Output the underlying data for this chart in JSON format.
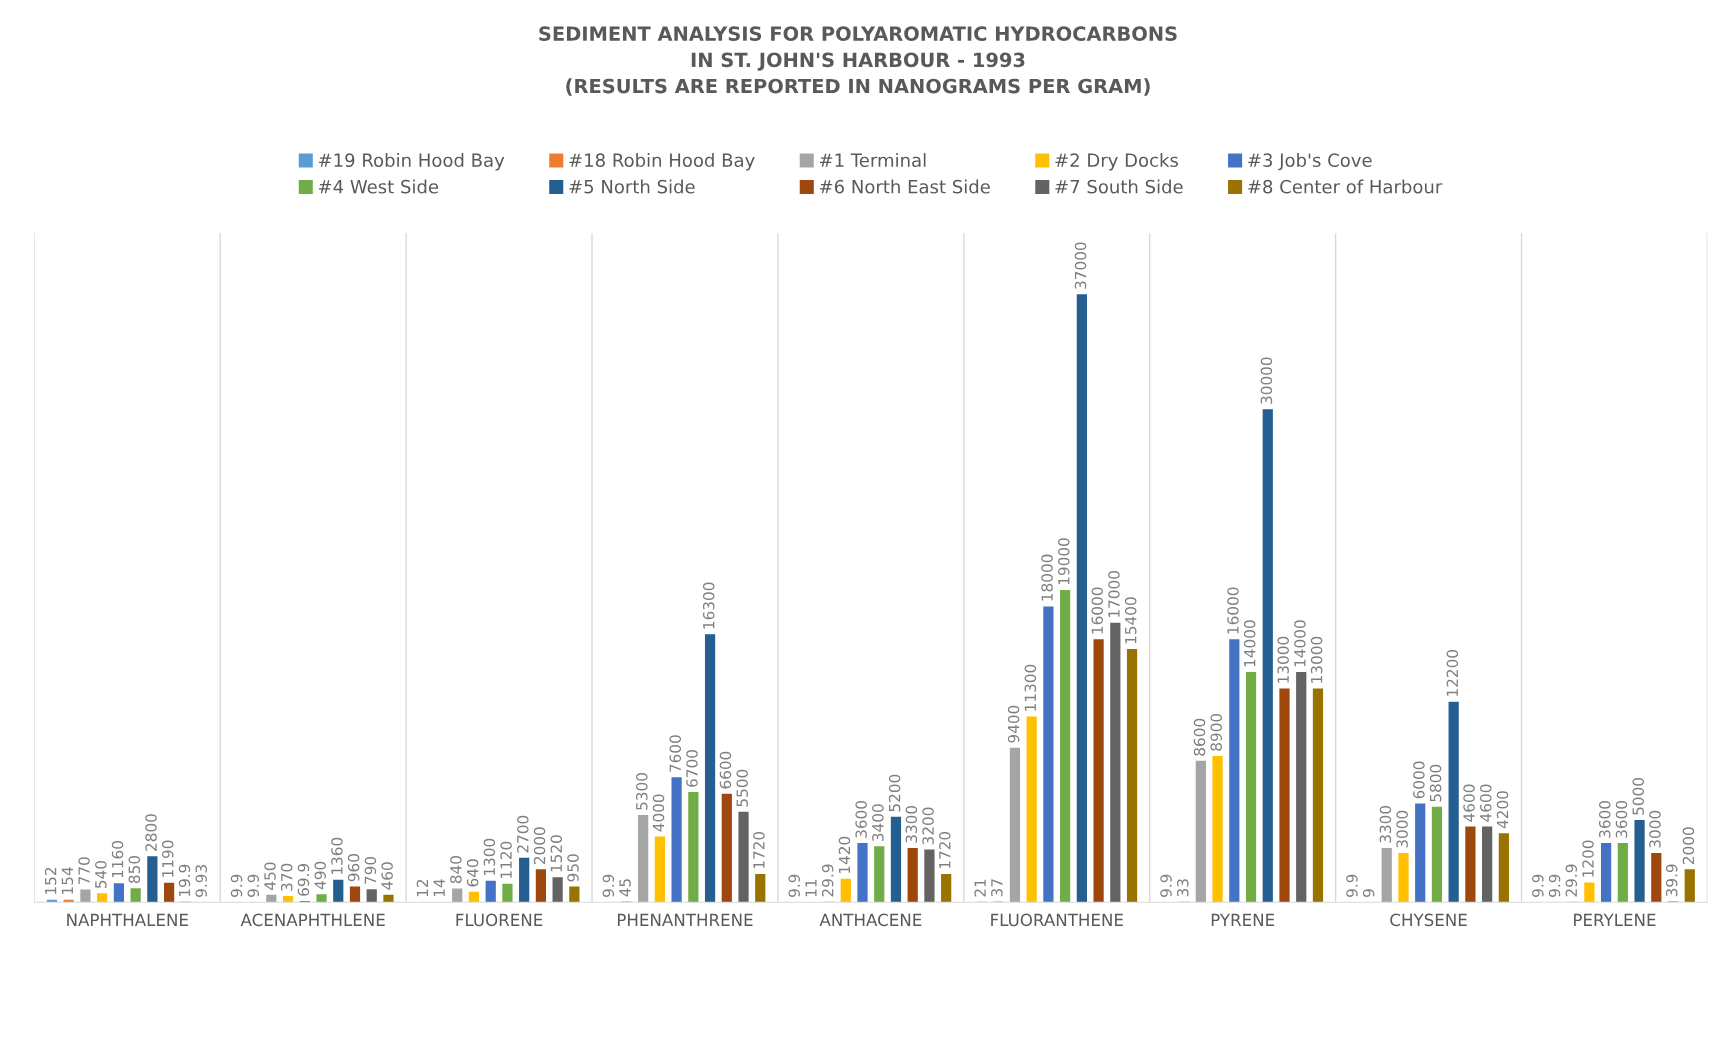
{
  "chart_data": {
    "type": "bar",
    "title": "SEDIMENT ANALYSIS FOR POLYAROMATIC HYDROCARBONS\nIN ST. JOHN'S HARBOUR - 1993\n(RESULTS ARE REPORTED IN NANOGRAMS PER GRAM)",
    "categories": [
      "NAPHTHALENE",
      "ACENAPHTHLENE",
      "FLUORENE",
      "PHENANTHRENE",
      "ANTHACENE",
      "FLUORANTHENE",
      "PYRENE",
      "CHYSENE",
      "PERYLENE"
    ],
    "series": [
      {
        "name": "#19 Robin Hood Bay",
        "color": "#5b9bd5",
        "values": [
          152,
          9.9,
          12,
          9.9,
          9.9,
          21,
          9.9,
          9.9,
          9.9
        ]
      },
      {
        "name": "#18 Robin Hood Bay",
        "color": "#ed7d31",
        "values": [
          154,
          9.9,
          14,
          45,
          11,
          37,
          33,
          9,
          9.9
        ]
      },
      {
        "name": "#1 Terminal",
        "color": "#a5a5a5",
        "values": [
          770,
          450,
          840,
          5300,
          29.9,
          9400,
          8600,
          3300,
          29.9
        ]
      },
      {
        "name": "#2 Dry Docks",
        "color": "#ffc000",
        "values": [
          540,
          370,
          640,
          4000,
          1420,
          11300,
          8900,
          3000,
          1200
        ]
      },
      {
        "name": "#3 Job's Cove",
        "color": "#4472c4",
        "values": [
          1160,
          69.9,
          1300,
          7600,
          3600,
          18000,
          16000,
          6000,
          3600
        ]
      },
      {
        "name": "#4 West Side",
        "color": "#70ad47",
        "values": [
          850,
          490,
          1120,
          6700,
          3400,
          19000,
          14000,
          5800,
          3600
        ]
      },
      {
        "name": "#5 North Side",
        "color": "#255e91",
        "values": [
          2800,
          1360,
          2700,
          16300,
          5200,
          37000,
          30000,
          12200,
          5000
        ]
      },
      {
        "name": "#6 North East Side",
        "color": "#9e480e",
        "values": [
          1190,
          960,
          2000,
          6600,
          3300,
          16000,
          13000,
          4600,
          3000
        ]
      },
      {
        "name": "#7 South Side",
        "color": "#636363",
        "values": [
          19.9,
          790,
          1520,
          5500,
          3200,
          17000,
          14000,
          4600,
          39.9
        ]
      },
      {
        "name": "#8 Center of Harbour",
        "color": "#997300",
        "values": [
          9.93,
          460,
          950,
          1720,
          1720,
          15400,
          13000,
          4200,
          2000
        ]
      }
    ],
    "data_labels": true,
    "grid": "x",
    "legend": "top"
  }
}
